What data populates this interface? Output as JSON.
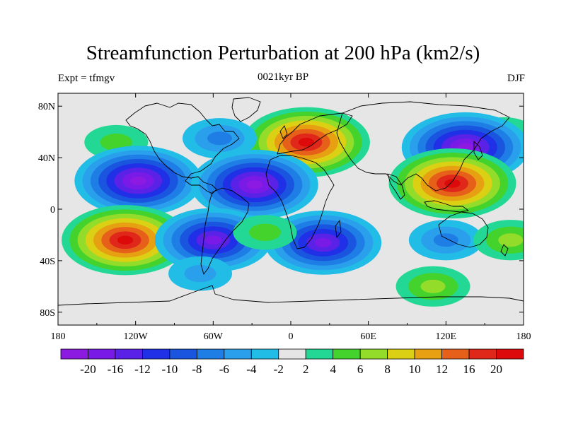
{
  "title": "Streamfunction Perturbation at 200 hPa (km2/s)",
  "experiment_label": "Expt = tfmgv",
  "subtitle": "0021kyr BP",
  "season": "DJF",
  "map": {
    "projection": "cylindrical-equidistant",
    "lon_range": [
      -180,
      180
    ],
    "lat_range": [
      -90,
      90
    ],
    "lat_tick_labels": [
      "80N",
      "40N",
      "0",
      "40S",
      "80S"
    ],
    "lon_tick_labels": [
      "180",
      "120W",
      "60W",
      "0",
      "60E",
      "120E",
      "180"
    ],
    "background_color": "#e6e6e6",
    "coastline_color": "#000000"
  },
  "colorbar": {
    "labels": [
      "-20",
      "-16",
      "-12",
      "-10",
      "-8",
      "-6",
      "-4",
      "-2",
      "2",
      "4",
      "6",
      "8",
      "10",
      "12",
      "16",
      "20"
    ],
    "colors": [
      "#8c1ae0",
      "#7a1ae6",
      "#5a22e6",
      "#2030e6",
      "#1a55e0",
      "#1e7ee6",
      "#2aa0ec",
      "#22bde6",
      "#e6e6e6",
      "#22d894",
      "#44d22c",
      "#94dc2a",
      "#dcd014",
      "#e6a012",
      "#e6601a",
      "#e0281a",
      "#dc0a0a"
    ]
  },
  "features": [
    {
      "name": "north-pacific-positive",
      "lon": -135,
      "lat": 52,
      "sign": "+",
      "level": 4,
      "color": "#22d894"
    },
    {
      "name": "north-pacific-west-positive",
      "lon": 165,
      "lat": 58,
      "sign": "+",
      "level": 4,
      "color": "#22d894"
    },
    {
      "name": "northeast-asia-negative",
      "lon": 135,
      "lat": 48,
      "sign": "-",
      "level": -20,
      "color": "#8c1ae0"
    },
    {
      "name": "europe-positive",
      "lon": 12,
      "lat": 52,
      "sign": "+",
      "level": 20,
      "color": "#dc0a0a"
    },
    {
      "name": "north-atlantic-cyclone",
      "lon": -55,
      "lat": 55,
      "sign": "-",
      "level": -6,
      "color": "#1e7ee6"
    },
    {
      "name": "eastern-pacific-subtropical-negative",
      "lon": -118,
      "lat": 22,
      "sign": "-",
      "level": -20,
      "color": "#8c1ae0"
    },
    {
      "name": "atlantic-subtropical-negative",
      "lon": -28,
      "lat": 19,
      "sign": "-",
      "level": -20,
      "color": "#8c1ae0"
    },
    {
      "name": "south-asia-positive",
      "lon": 125,
      "lat": 20,
      "sign": "+",
      "level": 20,
      "color": "#dc0a0a"
    },
    {
      "name": "south-pacific-positive",
      "lon": -128,
      "lat": -24,
      "sign": "+",
      "level": 20,
      "color": "#dc0a0a"
    },
    {
      "name": "south-america-negative",
      "lon": -60,
      "lat": -24,
      "sign": "-",
      "level": -16,
      "color": "#7a1ae6"
    },
    {
      "name": "south-africa-negative",
      "lon": 25,
      "lat": -26,
      "sign": "-",
      "level": -16,
      "color": "#7a1ae6"
    },
    {
      "name": "south-indian-negative",
      "lon": 120,
      "lat": -24,
      "sign": "-",
      "level": -6,
      "color": "#1e7ee6"
    },
    {
      "name": "southeast-pacific-positive",
      "lon": 170,
      "lat": -24,
      "sign": "+",
      "level": 6,
      "color": "#44d22c"
    },
    {
      "name": "southern-ocean-negative",
      "lon": -70,
      "lat": -50,
      "sign": "-",
      "level": -4,
      "color": "#2aa0ec"
    },
    {
      "name": "antarctic-positive",
      "lon": 110,
      "lat": -60,
      "sign": "+",
      "level": 6,
      "color": "#44d22c"
    },
    {
      "name": "atlantic-minor-positive",
      "lon": -20,
      "lat": -18,
      "sign": "+",
      "level": 4,
      "color": "#22d894"
    }
  ]
}
